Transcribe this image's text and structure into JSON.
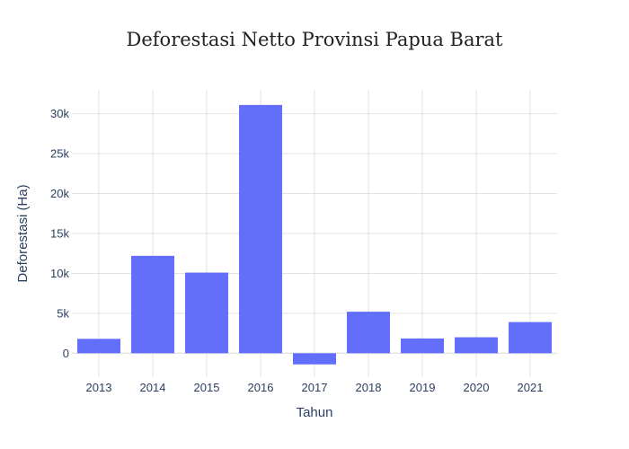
{
  "chart_data": {
    "type": "bar",
    "title": "Deforestasi Netto Provinsi Papua Barat",
    "xlabel": "Tahun",
    "ylabel": "Deforestasi (Ha)",
    "categories": [
      "2013",
      "2014",
      "2015",
      "2016",
      "2017",
      "2018",
      "2019",
      "2020",
      "2021"
    ],
    "series": [
      {
        "values": [
          1800,
          12200,
          10100,
          31100,
          -1400,
          5200,
          1850,
          2000,
          3900
        ]
      }
    ],
    "ylim": [
      -3000,
      33000
    ],
    "yticks": [
      0,
      5000,
      10000,
      15000,
      20000,
      25000,
      30000
    ],
    "ytick_labels": [
      "0",
      "5k",
      "10k",
      "15k",
      "20k",
      "25k",
      "30k"
    ],
    "grid": true,
    "bar_color": "#636efa"
  }
}
